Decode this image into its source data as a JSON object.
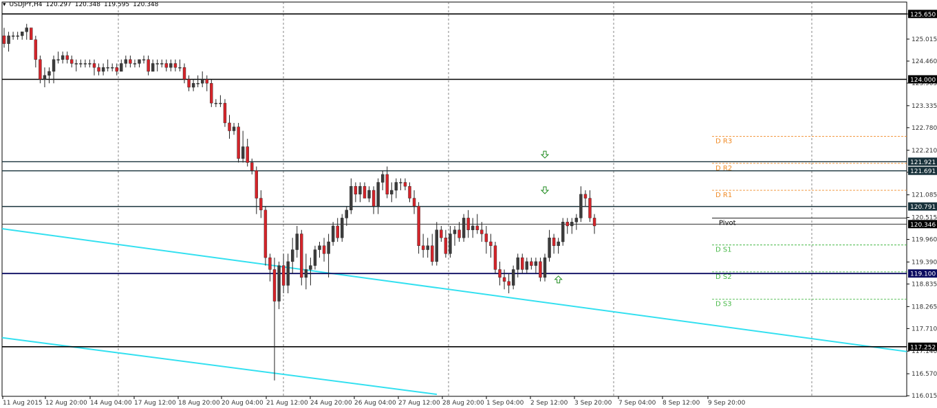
{
  "header": {
    "symbol": "USDJPY,H4",
    "open": "120.297",
    "high": "120.348",
    "low": "119.595",
    "close": "120.348"
  },
  "colors": {
    "background": "#ffffff",
    "bull_candle": "#3c3c3c",
    "bear_candle": "#d5242a",
    "trendline": "#33e0f0",
    "resistance_line": "#17313a",
    "support_line": "#0a0a60",
    "pivot_resistance": "#f08a24",
    "pivot_support": "#46b846",
    "arrow": "#1c8a1c",
    "grid": "#666666"
  },
  "chart_data": {
    "type": "candlestick",
    "symbol": "USDJPY",
    "timeframe": "H4",
    "ylim": [
      116.0,
      125.95
    ],
    "y_tick_labels": [
      "125.650",
      "125.015",
      "124.460",
      "123.905",
      "123.335",
      "122.780",
      "122.210",
      "121.655",
      "121.085",
      "120.515",
      "119.960",
      "119.390",
      "118.835",
      "118.265",
      "117.710",
      "117.140",
      "116.570",
      "116.015"
    ],
    "x_tick_labels": [
      "11 Aug 2015",
      "12 Aug 20:00",
      "14 Aug 04:00",
      "17 Aug 12:00",
      "18 Aug 20:00",
      "20 Aug 04:00",
      "21 Aug 12:00",
      "24 Aug 20:00",
      "26 Aug 04:00",
      "27 Aug 12:00",
      "28 Aug 20:00",
      "1 Sep 04:00",
      "2 Sep 12:00",
      "3 Sep 20:00",
      "7 Sep 04:00",
      "8 Sep 12:00",
      "9 Sep 20:00"
    ],
    "horizontal_levels": [
      {
        "price": 125.65,
        "label": "125.650",
        "style": "black"
      },
      {
        "price": 124.0,
        "label": "124.000",
        "style": "black"
      },
      {
        "price": 121.921,
        "label": "121.921",
        "style": "resistance"
      },
      {
        "price": 121.691,
        "label": "121.691",
        "style": "resistance"
      },
      {
        "price": 120.791,
        "label": "120.791",
        "style": "resistance"
      },
      {
        "price": 120.346,
        "label": "120.346",
        "style": "thin"
      },
      {
        "price": 119.1,
        "label": "119.100",
        "style": "support"
      },
      {
        "price": 117.252,
        "label": "117.252",
        "style": "black"
      }
    ],
    "pivot_levels": [
      {
        "name": "D R3",
        "price": 122.56,
        "kind": "r"
      },
      {
        "name": "D R2",
        "price": 121.88,
        "kind": "r"
      },
      {
        "name": "D R1",
        "price": 121.2,
        "kind": "r"
      },
      {
        "name": "Pivot",
        "price": 120.5,
        "kind": "p"
      },
      {
        "name": "D S1",
        "price": 119.82,
        "kind": "s"
      },
      {
        "name": "D S2",
        "price": 119.14,
        "kind": "s"
      },
      {
        "name": "D S3",
        "price": 118.45,
        "kind": "s"
      }
    ],
    "trendlines": [
      {
        "x": [
          0,
          1315
        ],
        "y": [
          120.23,
          117.13
        ]
      },
      {
        "x": [
          0,
          632
        ],
        "y": [
          117.48,
          116.05
        ]
      }
    ],
    "arrows": [
      {
        "candle": 120,
        "price": 122.1,
        "dir": "down"
      },
      {
        "candle": 120,
        "price": 121.2,
        "dir": "down"
      },
      {
        "candle": 123,
        "price": 118.95,
        "dir": "up"
      }
    ],
    "candles": [
      [
        125.1,
        125.3,
        124.8,
        124.9
      ],
      [
        124.9,
        125.2,
        124.7,
        125.1
      ],
      [
        125.1,
        125.2,
        125.0,
        125.1
      ],
      [
        125.1,
        125.2,
        125.0,
        125.1
      ],
      [
        125.1,
        125.2,
        125.0,
        125.2
      ],
      [
        125.2,
        125.4,
        125.0,
        125.3
      ],
      [
        125.3,
        125.3,
        125.0,
        125.0
      ],
      [
        125.0,
        125.1,
        124.3,
        124.5
      ],
      [
        124.5,
        124.6,
        123.9,
        124.0
      ],
      [
        124.0,
        124.3,
        123.8,
        124.1
      ],
      [
        124.1,
        124.3,
        123.9,
        124.2
      ],
      [
        124.2,
        124.6,
        123.9,
        124.5
      ],
      [
        124.5,
        124.7,
        124.4,
        124.5
      ],
      [
        124.5,
        124.7,
        124.4,
        124.6
      ],
      [
        124.6,
        124.7,
        124.4,
        124.5
      ],
      [
        124.5,
        124.6,
        124.3,
        124.4
      ],
      [
        124.4,
        124.5,
        124.2,
        124.4
      ],
      [
        124.4,
        124.5,
        124.3,
        124.4
      ],
      [
        124.4,
        124.5,
        124.3,
        124.4
      ],
      [
        124.4,
        124.5,
        124.3,
        124.4
      ],
      [
        124.4,
        124.5,
        124.1,
        124.3
      ],
      [
        124.3,
        124.4,
        124.1,
        124.2
      ],
      [
        124.2,
        124.4,
        124.1,
        124.3
      ],
      [
        124.3,
        124.5,
        124.2,
        124.3
      ],
      [
        124.3,
        124.4,
        124.2,
        124.3
      ],
      [
        124.3,
        124.4,
        124.1,
        124.2
      ],
      [
        124.2,
        124.5,
        124.2,
        124.4
      ],
      [
        124.4,
        124.6,
        124.3,
        124.5
      ],
      [
        124.5,
        124.6,
        124.3,
        124.4
      ],
      [
        124.4,
        124.5,
        124.3,
        124.4
      ],
      [
        124.4,
        124.5,
        124.3,
        124.5
      ],
      [
        124.5,
        124.6,
        124.4,
        124.5
      ],
      [
        124.5,
        124.6,
        124.1,
        124.2
      ],
      [
        124.2,
        124.5,
        124.2,
        124.4
      ],
      [
        124.4,
        124.5,
        124.2,
        124.4
      ],
      [
        124.4,
        124.5,
        124.3,
        124.4
      ],
      [
        124.4,
        124.5,
        124.2,
        124.3
      ],
      [
        124.3,
        124.5,
        124.2,
        124.4
      ],
      [
        124.4,
        124.5,
        124.2,
        124.3
      ],
      [
        124.3,
        124.5,
        124.2,
        124.3
      ],
      [
        124.3,
        124.4,
        123.9,
        124.0
      ],
      [
        124.0,
        124.1,
        123.7,
        123.8
      ],
      [
        123.8,
        124.0,
        123.7,
        123.9
      ],
      [
        123.9,
        124.1,
        123.8,
        123.9
      ],
      [
        123.9,
        124.2,
        123.8,
        124.0
      ],
      [
        124.0,
        124.1,
        123.7,
        123.9
      ],
      [
        123.9,
        124.0,
        123.3,
        123.4
      ],
      [
        123.4,
        123.5,
        123.3,
        123.4
      ],
      [
        123.4,
        123.6,
        123.3,
        123.4
      ],
      [
        123.4,
        123.5,
        122.8,
        122.9
      ],
      [
        122.9,
        123.1,
        122.5,
        122.7
      ],
      [
        122.7,
        122.9,
        122.6,
        122.8
      ],
      [
        122.8,
        122.9,
        121.9,
        122.0
      ],
      [
        122.0,
        122.7,
        121.9,
        122.3
      ],
      [
        122.3,
        122.5,
        121.8,
        121.9
      ],
      [
        121.9,
        122.0,
        121.6,
        121.7
      ],
      [
        121.7,
        121.8,
        120.6,
        121.0
      ],
      [
        121.0,
        121.2,
        120.5,
        120.7
      ],
      [
        120.7,
        120.8,
        119.3,
        119.5
      ],
      [
        119.5,
        119.6,
        118.9,
        119.2
      ],
      [
        119.2,
        119.5,
        116.4,
        118.4
      ],
      [
        118.4,
        119.4,
        118.2,
        119.3
      ],
      [
        119.3,
        119.6,
        118.6,
        118.8
      ],
      [
        118.8,
        119.6,
        118.6,
        119.4
      ],
      [
        119.4,
        120.0,
        119.1,
        119.7
      ],
      [
        119.7,
        120.3,
        119.5,
        120.1
      ],
      [
        120.1,
        120.2,
        118.8,
        119.0
      ],
      [
        119.0,
        119.6,
        118.7,
        119.2
      ],
      [
        119.2,
        119.5,
        118.8,
        119.3
      ],
      [
        119.3,
        119.8,
        119.2,
        119.7
      ],
      [
        119.7,
        119.9,
        119.5,
        119.8
      ],
      [
        119.8,
        120.0,
        119.4,
        119.6
      ],
      [
        119.6,
        120.1,
        119.0,
        119.9
      ],
      [
        119.9,
        120.4,
        119.8,
        120.3
      ],
      [
        120.3,
        120.5,
        119.9,
        120.0
      ],
      [
        120.0,
        120.6,
        119.9,
        120.5
      ],
      [
        120.5,
        120.8,
        120.3,
        120.7
      ],
      [
        120.7,
        121.5,
        120.6,
        121.3
      ],
      [
        121.3,
        121.4,
        120.9,
        121.1
      ],
      [
        121.1,
        121.4,
        120.9,
        121.3
      ],
      [
        121.3,
        121.4,
        121.0,
        121.0
      ],
      [
        121.0,
        121.3,
        120.9,
        121.2
      ],
      [
        121.2,
        121.3,
        120.6,
        120.8
      ],
      [
        120.8,
        121.5,
        120.6,
        121.4
      ],
      [
        121.4,
        121.7,
        121.2,
        121.6
      ],
      [
        121.6,
        121.8,
        121.0,
        121.1
      ],
      [
        121.1,
        121.4,
        120.9,
        121.2
      ],
      [
        121.2,
        121.5,
        121.0,
        121.4
      ],
      [
        121.4,
        121.5,
        121.2,
        121.4
      ],
      [
        121.4,
        121.5,
        121.2,
        121.3
      ],
      [
        121.3,
        121.4,
        120.9,
        121.0
      ],
      [
        121.0,
        121.2,
        120.6,
        120.8
      ],
      [
        120.8,
        120.9,
        119.6,
        119.8
      ],
      [
        119.8,
        120.1,
        119.5,
        119.7
      ],
      [
        119.7,
        120.0,
        119.5,
        119.8
      ],
      [
        119.8,
        120.1,
        119.3,
        119.4
      ],
      [
        119.4,
        120.4,
        119.3,
        120.2
      ],
      [
        120.2,
        120.3,
        119.9,
        120.0
      ],
      [
        120.0,
        120.2,
        119.5,
        119.6
      ],
      [
        119.6,
        120.3,
        119.5,
        120.1
      ],
      [
        120.1,
        120.3,
        119.8,
        120.2
      ],
      [
        120.2,
        120.4,
        119.9,
        120.0
      ],
      [
        120.0,
        120.6,
        119.9,
        120.5
      ],
      [
        120.5,
        120.7,
        120.0,
        120.2
      ],
      [
        120.2,
        120.5,
        120.0,
        120.3
      ],
      [
        120.3,
        120.6,
        120.1,
        120.2
      ],
      [
        120.2,
        120.4,
        119.9,
        120.1
      ],
      [
        120.1,
        120.3,
        119.6,
        119.9
      ],
      [
        119.9,
        120.1,
        119.5,
        119.8
      ],
      [
        119.8,
        119.9,
        119.1,
        119.2
      ],
      [
        119.2,
        119.4,
        118.8,
        119.0
      ],
      [
        119.0,
        119.2,
        118.7,
        118.9
      ],
      [
        118.9,
        119.1,
        118.6,
        118.8
      ],
      [
        118.8,
        119.3,
        118.7,
        119.2
      ],
      [
        119.2,
        119.6,
        119.0,
        119.5
      ],
      [
        119.5,
        119.6,
        119.1,
        119.2
      ],
      [
        119.2,
        119.5,
        119.1,
        119.4
      ],
      [
        119.4,
        119.5,
        119.2,
        119.3
      ],
      [
        119.3,
        119.5,
        119.1,
        119.4
      ],
      [
        119.4,
        119.5,
        118.9,
        119.0
      ],
      [
        119.0,
        119.6,
        118.9,
        119.5
      ],
      [
        119.5,
        120.2,
        119.4,
        120.0
      ],
      [
        120.0,
        120.1,
        119.6,
        119.8
      ],
      [
        119.8,
        120.0,
        119.6,
        119.9
      ],
      [
        119.9,
        120.5,
        119.8,
        120.4
      ],
      [
        120.4,
        120.5,
        120.1,
        120.3
      ],
      [
        120.3,
        120.5,
        120.1,
        120.4
      ],
      [
        120.4,
        120.6,
        120.2,
        120.5
      ],
      [
        120.5,
        121.3,
        120.4,
        121.1
      ],
      [
        121.1,
        121.2,
        120.8,
        121.0
      ],
      [
        121.0,
        121.2,
        120.4,
        120.5
      ],
      [
        120.5,
        120.6,
        120.1,
        120.3
      ]
    ]
  }
}
